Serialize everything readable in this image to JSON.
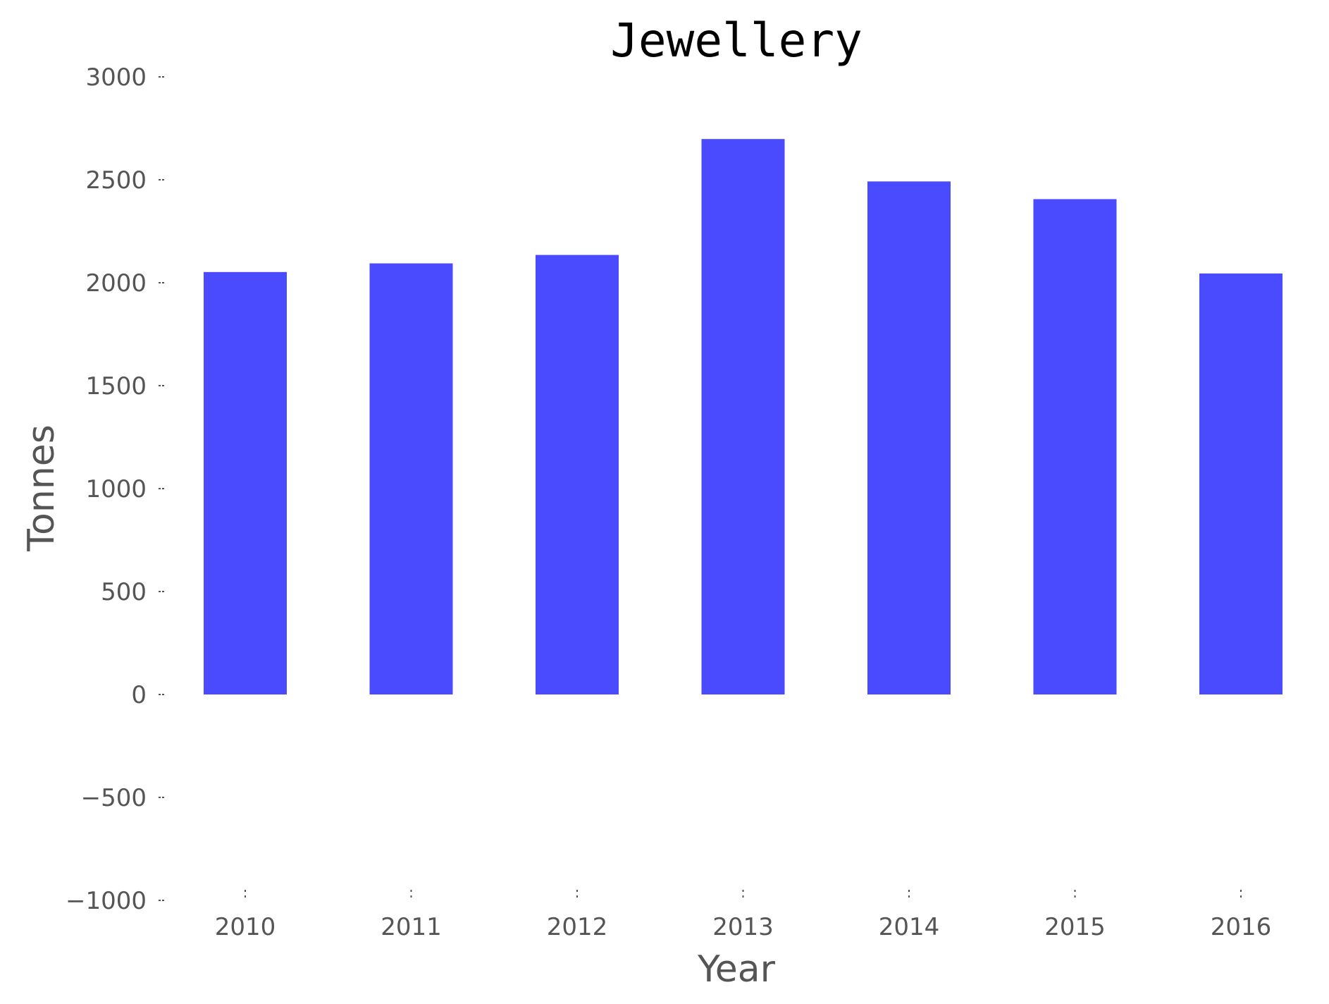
{
  "chart_data": {
    "type": "bar",
    "title": "Jewellery",
    "xlabel": "Year",
    "ylabel": "Tonnes",
    "categories": [
      "2010",
      "2011",
      "2012",
      "2013",
      "2014",
      "2015",
      "2016"
    ],
    "values": [
      2052,
      2094,
      2135,
      2698,
      2492,
      2406,
      2045
    ],
    "ylim": [
      -1000,
      3000
    ],
    "yticks": [
      "3000",
      "2500",
      "2000",
      "1500",
      "1000",
      "500",
      "0",
      "−500",
      "−1000"
    ],
    "grid": false,
    "bar_color": "#4a4aff"
  }
}
